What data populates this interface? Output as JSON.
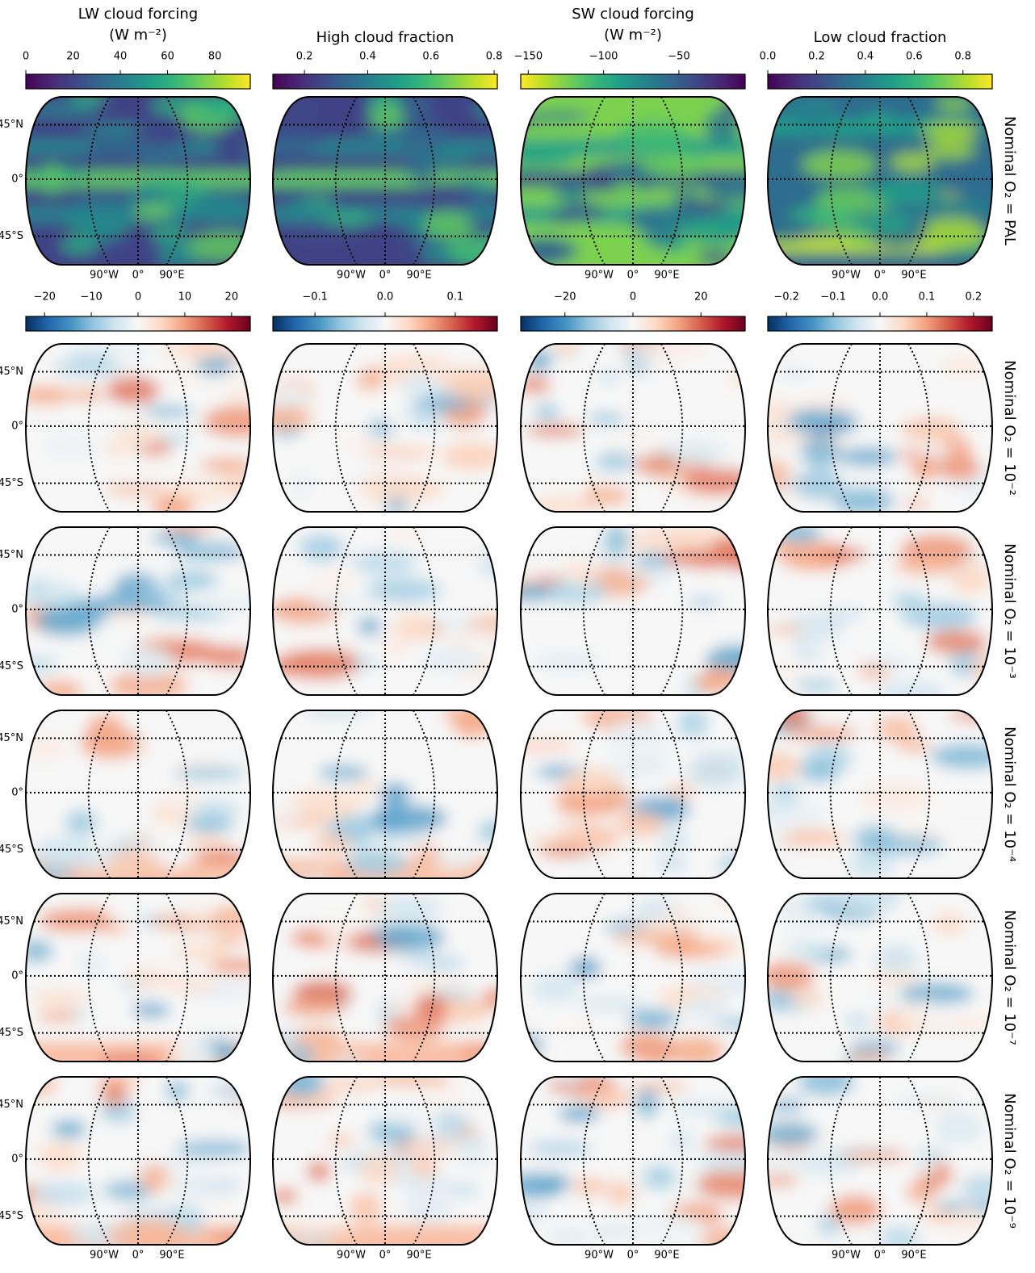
{
  "columns": [
    {
      "title": [
        "LW cloud forcing",
        "(W m⁻²)"
      ],
      "colormap": "viridis",
      "reverse": false,
      "lim": [
        0,
        95
      ],
      "ticks": [
        0,
        20,
        40,
        60,
        80
      ]
    },
    {
      "title": [
        "High cloud fraction"
      ],
      "colormap": "viridis",
      "reverse": false,
      "lim": [
        0.1,
        0.81
      ],
      "ticks": [
        0.2,
        0.4,
        0.6,
        0.8
      ]
    },
    {
      "title": [
        "SW cloud forcing",
        "(W m⁻²)"
      ],
      "colormap": "viridis",
      "reverse": true,
      "lim": [
        -155,
        -6
      ],
      "ticks": [
        {
          "value": -150,
          "label": "−150"
        },
        {
          "value": -100,
          "label": "−100"
        },
        {
          "value": -50,
          "label": "−50"
        }
      ]
    },
    {
      "title": [
        "Low cloud fraction"
      ],
      "colormap": "viridis",
      "reverse": false,
      "lim": [
        0,
        0.92
      ],
      "ticks": [
        {
          "value": 0,
          "label": "0.0"
        },
        0.2,
        0.4,
        0.6,
        0.8
      ]
    }
  ],
  "difference_colorbars": [
    {
      "colormap": "RdBu_r",
      "lim": [
        -24,
        24
      ],
      "ticks": [
        {
          "value": -20,
          "label": "−20"
        },
        {
          "value": -10,
          "label": "−10"
        },
        0,
        10,
        20
      ]
    },
    {
      "colormap": "RdBu_r",
      "lim": [
        -0.16,
        0.16
      ],
      "ticks": [
        {
          "value": -0.1,
          "label": "−0.1"
        },
        {
          "value": 0,
          "label": "0.0"
        },
        0.1
      ]
    },
    {
      "colormap": "RdBu_r",
      "lim": [
        -33,
        33
      ],
      "ticks": [
        {
          "value": -20,
          "label": "−20"
        },
        0,
        20
      ]
    },
    {
      "colormap": "RdBu_r",
      "lim": [
        -0.24,
        0.24
      ],
      "ticks": [
        {
          "value": -0.2,
          "label": "−0.2"
        },
        {
          "value": -0.1,
          "label": "−0.1"
        },
        {
          "value": 0,
          "label": "0.0"
        },
        0.1,
        0.2
      ]
    }
  ],
  "rows": [
    "Nominal O₂ =  PAL",
    "Nominal O₂ = 10⁻²",
    "Nominal O₂ = 10⁻³",
    "Nominal O₂ = 10⁻⁴",
    "Nominal O₂ = 10⁻⁷",
    "Nominal O₂ = 10⁻⁹"
  ],
  "latitude_labels": [
    "45°N",
    "0°",
    "45°S"
  ],
  "longitude_labels": [
    "90°W",
    "0°",
    "90°E"
  ]
}
